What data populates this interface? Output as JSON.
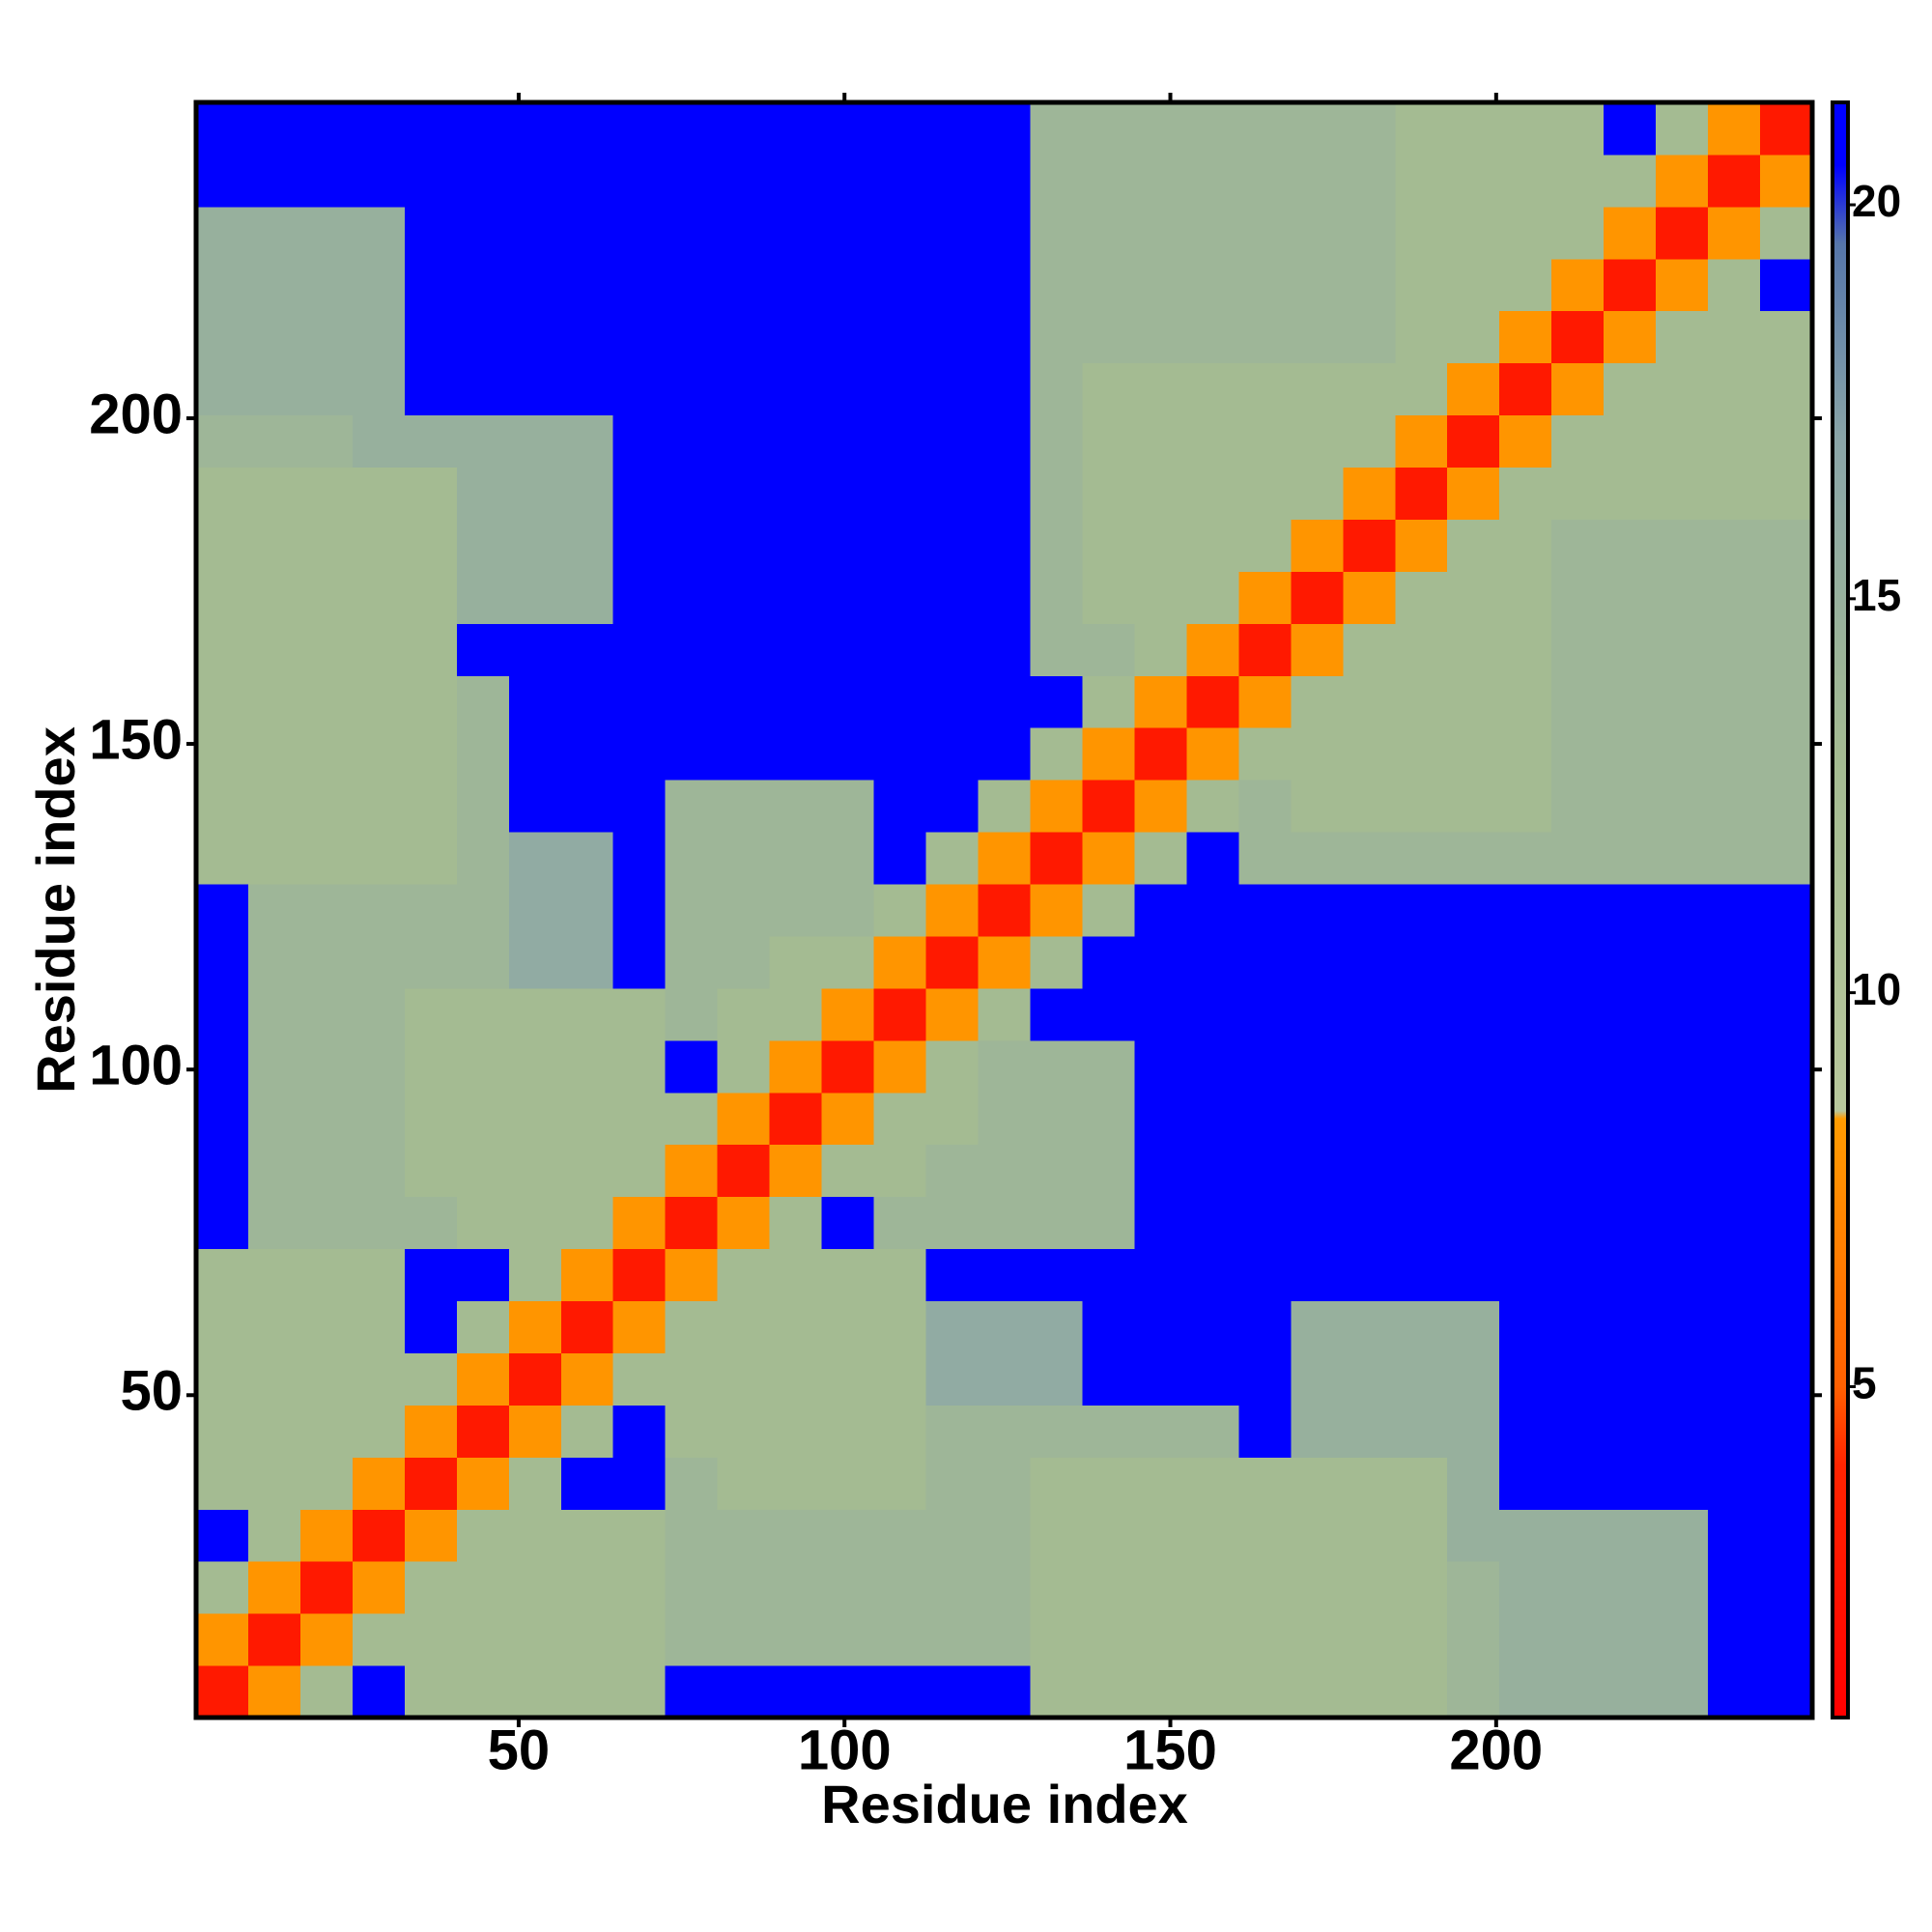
{
  "chart_data": {
    "type": "heatmap",
    "xlabel": "Residue index",
    "ylabel": "Residue index",
    "xlim": [
      0.5,
      248.5
    ],
    "ylim": [
      0.5,
      248.5
    ],
    "xticks": [
      50,
      100,
      150,
      200
    ],
    "yticks": [
      50,
      100,
      150,
      200
    ],
    "bins": [
      0.5,
      8.5,
      16.5,
      24.5,
      32.5,
      40.5,
      48.5,
      56.5,
      64.5,
      72.5,
      80.5,
      88.5,
      96.5,
      104.5,
      112.5,
      120.5,
      128.5,
      136.5,
      144.5,
      152.5,
      160.5,
      168.5,
      176.5,
      184.5,
      192.5,
      200.5,
      208.5,
      216.5,
      224.5,
      232.5,
      240.5,
      248.5
    ],
    "clim": [
      0.8,
      21.3
    ],
    "cticks": [
      5,
      10,
      15,
      20
    ],
    "colorscale": [
      [
        0.8,
        "#ff0000"
      ],
      [
        4,
        "#ff2400"
      ],
      [
        5,
        "#ff6000"
      ],
      [
        8.4,
        "#ff9c00"
      ],
      [
        8.5,
        "#b8c89c"
      ],
      [
        13,
        "#a4bb92"
      ],
      [
        17,
        "#8aa5a8"
      ],
      [
        19.5,
        "#5676aa"
      ],
      [
        20.5,
        "#0000ff"
      ],
      [
        21.3,
        "#0000ff"
      ]
    ],
    "values": [
      [
        3,
        8,
        13,
        21,
        13,
        13,
        13,
        13,
        13,
        21,
        21,
        21,
        21,
        21,
        21,
        21,
        13,
        13,
        13,
        13,
        13,
        13,
        13,
        13,
        14,
        15,
        15,
        15,
        15,
        21,
        21
      ],
      [
        8,
        3,
        8,
        13,
        13,
        13,
        13,
        13,
        13,
        14,
        14,
        14,
        14,
        14,
        14,
        14,
        13,
        13,
        13,
        13,
        13,
        13,
        13,
        13,
        14,
        15,
        15,
        15,
        15,
        21,
        21
      ],
      [
        13,
        8,
        3,
        8,
        13,
        13,
        13,
        13,
        13,
        14,
        14,
        14,
        14,
        14,
        14,
        14,
        13,
        13,
        13,
        13,
        13,
        13,
        13,
        13,
        14,
        15,
        15,
        15,
        15,
        21,
        21
      ],
      [
        21,
        13,
        8,
        3,
        8,
        13,
        13,
        13,
        13,
        14,
        14,
        14,
        14,
        14,
        14,
        14,
        13,
        13,
        13,
        13,
        13,
        13,
        13,
        13,
        15,
        15,
        15,
        15,
        15,
        21,
        21
      ],
      [
        13,
        13,
        13,
        8,
        3,
        8,
        13,
        21,
        21,
        14,
        13,
        13,
        13,
        13,
        14,
        14,
        13,
        13,
        13,
        13,
        13,
        13,
        13,
        13,
        15,
        21,
        21,
        21,
        21,
        21,
        21
      ],
      [
        13,
        13,
        13,
        13,
        8,
        3,
        8,
        13,
        21,
        13,
        13,
        13,
        13,
        13,
        14,
        14,
        14,
        14,
        14,
        14,
        21,
        15,
        15,
        15,
        15,
        21,
        21,
        21,
        21,
        21,
        21
      ],
      [
        13,
        13,
        13,
        13,
        13,
        8,
        3,
        8,
        13,
        13,
        13,
        13,
        13,
        13,
        16,
        16,
        16,
        21,
        21,
        21,
        21,
        15,
        15,
        15,
        15,
        21,
        21,
        21,
        21,
        21,
        21
      ],
      [
        13,
        13,
        13,
        13,
        21,
        13,
        8,
        3,
        8,
        13,
        13,
        13,
        13,
        13,
        16,
        16,
        16,
        21,
        21,
        21,
        21,
        15,
        15,
        15,
        15,
        21,
        21,
        21,
        21,
        21,
        21
      ],
      [
        13,
        13,
        13,
        13,
        21,
        21,
        13,
        8,
        3,
        8,
        13,
        13,
        13,
        13,
        21,
        21,
        21,
        21,
        21,
        21,
        21,
        21,
        21,
        21,
        21,
        21,
        21,
        21,
        21,
        21,
        21
      ],
      [
        21,
        14,
        14,
        14,
        14,
        13,
        13,
        13,
        8,
        3,
        8,
        13,
        21,
        14,
        14,
        14,
        14,
        14,
        21,
        21,
        21,
        21,
        21,
        21,
        21,
        21,
        21,
        21,
        21,
        21,
        21
      ],
      [
        21,
        14,
        14,
        14,
        13,
        13,
        13,
        13,
        13,
        8,
        3,
        8,
        13,
        13,
        14,
        14,
        14,
        14,
        21,
        21,
        21,
        21,
        21,
        21,
        21,
        21,
        21,
        21,
        21,
        21,
        21
      ],
      [
        21,
        14,
        14,
        14,
        13,
        13,
        13,
        13,
        13,
        13,
        8,
        3,
        8,
        13,
        13,
        14,
        14,
        14,
        21,
        21,
        21,
        21,
        21,
        21,
        21,
        21,
        21,
        21,
        21,
        21,
        21
      ],
      [
        21,
        14,
        14,
        14,
        13,
        13,
        13,
        13,
        13,
        21,
        13,
        8,
        3,
        8,
        13,
        14,
        14,
        14,
        21,
        21,
        21,
        21,
        21,
        21,
        21,
        21,
        21,
        21,
        21,
        21,
        21
      ],
      [
        21,
        14,
        14,
        14,
        13,
        13,
        13,
        13,
        13,
        14,
        13,
        13,
        8,
        3,
        8,
        13,
        21,
        21,
        21,
        21,
        21,
        21,
        21,
        21,
        21,
        21,
        21,
        21,
        21,
        21,
        21
      ],
      [
        21,
        14,
        14,
        14,
        14,
        14,
        16,
        16,
        21,
        14,
        14,
        13,
        13,
        8,
        3,
        8,
        13,
        21,
        21,
        21,
        21,
        21,
        21,
        21,
        21,
        21,
        21,
        21,
        21,
        21,
        21
      ],
      [
        21,
        14,
        14,
        14,
        14,
        14,
        16,
        16,
        21,
        14,
        14,
        14,
        14,
        13,
        8,
        3,
        8,
        13,
        21,
        21,
        21,
        21,
        21,
        21,
        21,
        21,
        21,
        21,
        21,
        21,
        21
      ],
      [
        13,
        13,
        13,
        13,
        13,
        14,
        16,
        16,
        21,
        14,
        14,
        14,
        14,
        21,
        13,
        8,
        3,
        8,
        13,
        21,
        14,
        14,
        14,
        14,
        14,
        14,
        14,
        14,
        14,
        14,
        14
      ],
      [
        13,
        13,
        13,
        13,
        13,
        14,
        21,
        21,
        21,
        14,
        14,
        14,
        14,
        21,
        21,
        13,
        8,
        3,
        8,
        13,
        14,
        13,
        13,
        13,
        13,
        13,
        14,
        14,
        14,
        14,
        14
      ],
      [
        13,
        13,
        13,
        13,
        13,
        14,
        21,
        21,
        21,
        21,
        21,
        21,
        21,
        21,
        21,
        21,
        13,
        8,
        3,
        8,
        13,
        13,
        13,
        13,
        13,
        13,
        14,
        14,
        14,
        14,
        14
      ],
      [
        13,
        13,
        13,
        13,
        13,
        14,
        21,
        21,
        21,
        21,
        21,
        21,
        21,
        21,
        21,
        21,
        21,
        13,
        8,
        3,
        8,
        13,
        13,
        13,
        13,
        13,
        14,
        14,
        14,
        14,
        14
      ],
      [
        13,
        13,
        13,
        13,
        13,
        21,
        21,
        21,
        21,
        21,
        21,
        21,
        21,
        21,
        21,
        21,
        14,
        14,
        13,
        8,
        3,
        8,
        13,
        13,
        13,
        13,
        14,
        14,
        14,
        14,
        14
      ],
      [
        13,
        13,
        13,
        13,
        13,
        15,
        15,
        15,
        21,
        21,
        21,
        21,
        21,
        21,
        21,
        21,
        14,
        13,
        13,
        13,
        8,
        3,
        8,
        13,
        13,
        13,
        14,
        14,
        14,
        14,
        14
      ],
      [
        13,
        13,
        13,
        13,
        13,
        15,
        15,
        15,
        21,
        21,
        21,
        21,
        21,
        21,
        21,
        21,
        14,
        13,
        13,
        13,
        13,
        8,
        3,
        8,
        13,
        13,
        14,
        14,
        14,
        14,
        14
      ],
      [
        13,
        13,
        13,
        13,
        13,
        15,
        15,
        15,
        21,
        21,
        21,
        21,
        21,
        21,
        21,
        21,
        14,
        13,
        13,
        13,
        13,
        13,
        8,
        3,
        8,
        13,
        13,
        13,
        13,
        13,
        13
      ],
      [
        14,
        14,
        14,
        15,
        15,
        15,
        15,
        15,
        21,
        21,
        21,
        21,
        21,
        21,
        21,
        21,
        14,
        13,
        13,
        13,
        13,
        13,
        13,
        8,
        3,
        8,
        13,
        13,
        13,
        13,
        13
      ],
      [
        15,
        15,
        15,
        15,
        21,
        21,
        21,
        21,
        21,
        21,
        21,
        21,
        21,
        21,
        21,
        21,
        14,
        13,
        13,
        13,
        13,
        13,
        13,
        13,
        8,
        3,
        8,
        13,
        13,
        13,
        13
      ],
      [
        15,
        15,
        15,
        15,
        21,
        21,
        21,
        21,
        21,
        21,
        21,
        21,
        21,
        21,
        21,
        21,
        14,
        14,
        14,
        14,
        14,
        14,
        14,
        13,
        13,
        8,
        3,
        8,
        13,
        13,
        13
      ],
      [
        15,
        15,
        15,
        15,
        21,
        21,
        21,
        21,
        21,
        21,
        21,
        21,
        21,
        21,
        21,
        21,
        14,
        14,
        14,
        14,
        14,
        14,
        14,
        13,
        13,
        13,
        8,
        3,
        8,
        13,
        21
      ],
      [
        15,
        15,
        15,
        15,
        21,
        21,
        21,
        21,
        21,
        21,
        21,
        21,
        21,
        21,
        21,
        21,
        14,
        14,
        14,
        14,
        14,
        14,
        14,
        13,
        13,
        13,
        13,
        8,
        3,
        8,
        13
      ],
      [
        21,
        21,
        21,
        21,
        21,
        21,
        21,
        21,
        21,
        21,
        21,
        21,
        21,
        21,
        21,
        21,
        14,
        14,
        14,
        14,
        14,
        14,
        14,
        13,
        13,
        13,
        13,
        13,
        8,
        3,
        8
      ],
      [
        21,
        21,
        21,
        21,
        21,
        21,
        21,
        21,
        21,
        21,
        21,
        21,
        21,
        21,
        21,
        21,
        14,
        14,
        14,
        14,
        14,
        14,
        14,
        13,
        13,
        13,
        13,
        21,
        13,
        8,
        3
      ]
    ]
  }
}
